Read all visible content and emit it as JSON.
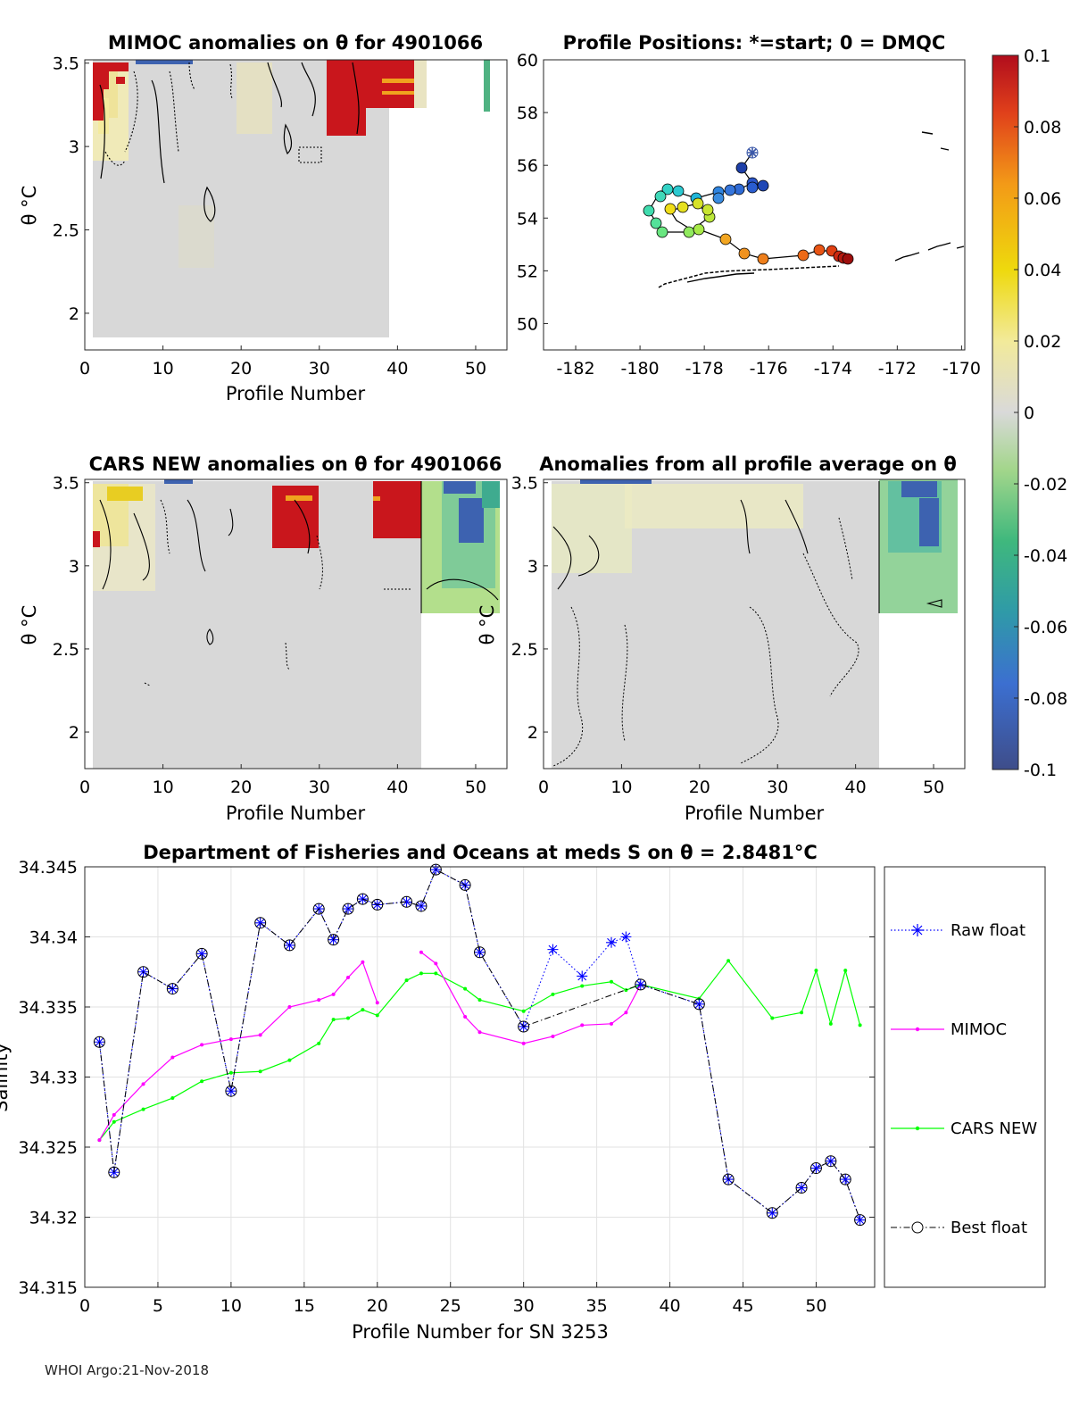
{
  "footer": "WHOI Argo:21-Nov-2018",
  "panels": {
    "mimoc": {
      "title": "MIMOC anomalies on θ  for 4901066",
      "xlabel": "Profile Number",
      "ylabel": "θ °C",
      "xticks": [
        "0",
        "10",
        "20",
        "30",
        "40",
        "50"
      ],
      "yticks": [
        "2",
        "2.5",
        "3",
        "3.5"
      ],
      "xrange": [
        0,
        54
      ],
      "yrange": [
        1.78,
        3.52
      ],
      "data_extent_profile": 39,
      "data_min_theta": 1.85
    },
    "positions": {
      "title": "Profile Positions: *=start; 0 = DMQC",
      "xticks": [
        "-182",
        "-180",
        "-178",
        "-176",
        "-174",
        "-172",
        "-170"
      ],
      "yticks": [
        "50",
        "52",
        "54",
        "56",
        "58",
        "60"
      ],
      "xrange": [
        -183,
        -169.9
      ],
      "yrange": [
        49,
        60
      ]
    },
    "cars": {
      "title": "CARS NEW anomalies on θ for 4901066",
      "xlabel": "Profile Number",
      "ylabel": "θ °C",
      "xticks": [
        "0",
        "10",
        "20",
        "30",
        "40",
        "50"
      ],
      "yticks": [
        "2",
        "2.5",
        "3",
        "3.5"
      ],
      "xrange": [
        0,
        54
      ],
      "yrange": [
        1.78,
        3.52
      ]
    },
    "allavg": {
      "title": "Anomalies from all profile average on θ",
      "xlabel": "Profile Number",
      "ylabel": "θ °C",
      "xticks": [
        "0",
        "10",
        "20",
        "30",
        "40",
        "50"
      ],
      "yticks": [
        "2",
        "2.5",
        "3",
        "3.5"
      ],
      "xrange": [
        0,
        54
      ],
      "yrange": [
        1.78,
        3.52
      ]
    },
    "colorbar": {
      "ticks": [
        "0.1",
        "0.08",
        "0.06",
        "0.04",
        "0.02",
        "0",
        "-0.02",
        "-0.04",
        "-0.06",
        "-0.08",
        "-0.1"
      ],
      "range": [
        -0.1,
        0.1
      ]
    }
  },
  "chart_data": {
    "type": "line",
    "title": "Department of Fisheries and Oceans at meds S on θ = 2.8481°C",
    "xlabel": "Profile Number for SN 3253",
    "ylabel": "Salinity",
    "xlim": [
      0,
      54
    ],
    "ylim": [
      34.315,
      34.345
    ],
    "xticks": [
      "0",
      "5",
      "10",
      "15",
      "20",
      "25",
      "30",
      "35",
      "40",
      "45",
      "50"
    ],
    "yticks": [
      "34.315",
      "34.32",
      "34.325",
      "34.33",
      "34.335",
      "34.34",
      "34.345"
    ],
    "series": [
      {
        "name": "Raw float",
        "color": "#0000ff",
        "style": "dotted-star",
        "points": [
          [
            1,
            34.3325
          ],
          [
            2,
            34.3232
          ],
          [
            4,
            34.3375
          ],
          [
            6,
            34.3363
          ],
          [
            8,
            34.3388
          ],
          [
            10,
            34.329
          ],
          [
            12,
            34.341
          ],
          [
            14,
            34.3394
          ],
          [
            16,
            34.342
          ],
          [
            17,
            34.3398
          ],
          [
            18,
            34.342
          ],
          [
            19,
            34.3427
          ],
          [
            20,
            34.3423
          ],
          [
            22,
            34.3425
          ],
          [
            23,
            34.3422
          ],
          [
            24,
            34.3448
          ],
          [
            26,
            34.3437
          ],
          [
            27,
            34.3389
          ],
          [
            30,
            34.3336
          ],
          [
            32,
            34.3391
          ],
          [
            34,
            34.3372
          ],
          [
            36,
            34.3396
          ],
          [
            37,
            34.34
          ],
          [
            38,
            34.3366
          ],
          [
            42,
            34.3352
          ],
          [
            44,
            34.3227
          ],
          [
            47,
            34.3203
          ],
          [
            49,
            34.3221
          ],
          [
            50,
            34.3235
          ],
          [
            51,
            34.324
          ],
          [
            52,
            34.3227
          ],
          [
            53,
            34.3198
          ]
        ]
      },
      {
        "name": "MIMOC",
        "color": "#ff00ff",
        "style": "solid-dot",
        "segments": [
          [
            [
              1,
              34.3255
            ],
            [
              2,
              34.3273
            ],
            [
              4,
              34.3295
            ],
            [
              6,
              34.3314
            ],
            [
              8,
              34.3323
            ],
            [
              10,
              34.3327
            ],
            [
              12,
              34.333
            ],
            [
              14,
              34.335
            ],
            [
              16,
              34.3355
            ],
            [
              17,
              34.3359
            ],
            [
              18,
              34.3371
            ],
            [
              19,
              34.3382
            ],
            [
              20,
              34.3353
            ]
          ],
          [
            [
              23,
              34.3389
            ],
            [
              24,
              34.3381
            ],
            [
              26,
              34.3343
            ],
            [
              27,
              34.3332
            ],
            [
              30,
              34.3324
            ],
            [
              32,
              34.3329
            ],
            [
              34,
              34.3337
            ],
            [
              36,
              34.3338
            ],
            [
              37,
              34.3346
            ],
            [
              38,
              34.3366
            ]
          ]
        ]
      },
      {
        "name": "CARS NEW",
        "color": "#00ff00",
        "style": "solid-dot",
        "points": [
          [
            1,
            34.3255
          ],
          [
            2,
            34.3268
          ],
          [
            4,
            34.3277
          ],
          [
            6,
            34.3285
          ],
          [
            8,
            34.3297
          ],
          [
            10,
            34.3303
          ],
          [
            12,
            34.3304
          ],
          [
            14,
            34.3312
          ],
          [
            16,
            34.3324
          ],
          [
            17,
            34.3341
          ],
          [
            18,
            34.3342
          ],
          [
            19,
            34.3348
          ],
          [
            20,
            34.3344
          ],
          [
            22,
            34.3369
          ],
          [
            23,
            34.3374
          ],
          [
            24,
            34.3374
          ],
          [
            26,
            34.3363
          ],
          [
            27,
            34.3355
          ],
          [
            30,
            34.3347
          ],
          [
            32,
            34.3359
          ],
          [
            34,
            34.3365
          ],
          [
            36,
            34.3368
          ],
          [
            37,
            34.3362
          ],
          [
            38,
            34.3366
          ],
          [
            42,
            34.3356
          ],
          [
            44,
            34.3383
          ],
          [
            47,
            34.3342
          ],
          [
            49,
            34.3346
          ],
          [
            50,
            34.3376
          ],
          [
            51,
            34.3338
          ],
          [
            52,
            34.3376
          ],
          [
            53,
            34.3337
          ]
        ]
      },
      {
        "name": "Best float",
        "color": "#000000",
        "style": "dashdot-circle",
        "points": [
          [
            1,
            34.3325
          ],
          [
            2,
            34.3232
          ],
          [
            4,
            34.3375
          ],
          [
            6,
            34.3363
          ],
          [
            8,
            34.3388
          ],
          [
            10,
            34.329
          ],
          [
            12,
            34.341
          ],
          [
            14,
            34.3394
          ],
          [
            16,
            34.342
          ],
          [
            17,
            34.3398
          ],
          [
            18,
            34.342
          ],
          [
            19,
            34.3427
          ],
          [
            20,
            34.3423
          ],
          [
            22,
            34.3425
          ],
          [
            23,
            34.3422
          ],
          [
            24,
            34.3448
          ],
          [
            26,
            34.3437
          ],
          [
            27,
            34.3389
          ],
          [
            30,
            34.3336
          ],
          [
            38,
            34.3366
          ],
          [
            42,
            34.3352
          ],
          [
            44,
            34.3227
          ],
          [
            47,
            34.3203
          ],
          [
            49,
            34.3221
          ],
          [
            50,
            34.3235
          ],
          [
            51,
            34.324
          ],
          [
            52,
            34.3227
          ],
          [
            53,
            34.3198
          ]
        ]
      }
    ],
    "legend": {
      "position": "right-outside",
      "entries": [
        "Raw float",
        "MIMOC",
        "CARS NEW",
        "Best float"
      ]
    },
    "grid": true
  }
}
